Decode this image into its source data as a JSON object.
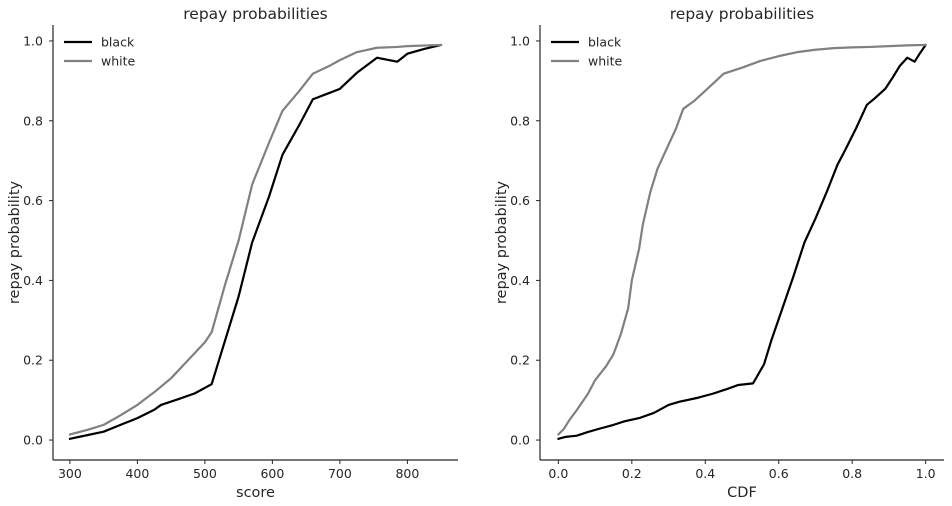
{
  "colors": {
    "black": "#000000",
    "white": "#808080",
    "axis": "#262626"
  },
  "chart_data": [
    {
      "type": "line",
      "title": "repay probabilities",
      "xlabel": "score",
      "ylabel": "repay probability",
      "xlim": [
        275,
        875
      ],
      "ylim": [
        -0.05,
        1.04
      ],
      "xticks": [
        "300",
        "400",
        "500",
        "600",
        "700",
        "800"
      ],
      "yticks": [
        "0.0",
        "0.2",
        "0.4",
        "0.6",
        "0.8",
        "1.0"
      ],
      "legend": "top-left",
      "grid": false,
      "series": [
        {
          "name": "black",
          "color": "#000000",
          "points": [
            [
              300,
              0.003
            ],
            [
              325,
              0.012
            ],
            [
              350,
              0.021
            ],
            [
              375,
              0.038
            ],
            [
              400,
              0.055
            ],
            [
              425,
              0.076
            ],
            [
              435,
              0.088
            ],
            [
              460,
              0.102
            ],
            [
              485,
              0.117
            ],
            [
              510,
              0.14
            ],
            [
              530,
              0.25
            ],
            [
              550,
              0.36
            ],
            [
              570,
              0.495
            ],
            [
              595,
              0.61
            ],
            [
              615,
              0.715
            ],
            [
              640,
              0.79
            ],
            [
              660,
              0.854
            ],
            [
              685,
              0.87
            ],
            [
              700,
              0.88
            ],
            [
              725,
              0.92
            ],
            [
              755,
              0.958
            ],
            [
              785,
              0.948
            ],
            [
              800,
              0.968
            ],
            [
              825,
              0.98
            ],
            [
              850,
              0.99
            ]
          ]
        },
        {
          "name": "white",
          "color": "#808080",
          "points": [
            [
              300,
              0.014
            ],
            [
              325,
              0.025
            ],
            [
              350,
              0.038
            ],
            [
              375,
              0.062
            ],
            [
              400,
              0.088
            ],
            [
              425,
              0.12
            ],
            [
              450,
              0.155
            ],
            [
              475,
              0.2
            ],
            [
              500,
              0.245
            ],
            [
              510,
              0.27
            ],
            [
              530,
              0.39
            ],
            [
              550,
              0.5
            ],
            [
              570,
              0.64
            ],
            [
              595,
              0.745
            ],
            [
              615,
              0.825
            ],
            [
              640,
              0.875
            ],
            [
              660,
              0.918
            ],
            [
              685,
              0.938
            ],
            [
              700,
              0.952
            ],
            [
              725,
              0.972
            ],
            [
              755,
              0.983
            ],
            [
              785,
              0.985
            ],
            [
              800,
              0.987
            ],
            [
              850,
              0.99
            ]
          ]
        }
      ]
    },
    {
      "type": "line",
      "title": "repay probabilities",
      "xlabel": "CDF",
      "ylabel": "repay probability",
      "xlim": [
        -0.05,
        1.05
      ],
      "ylim": [
        -0.05,
        1.04
      ],
      "xticks": [
        "0.0",
        "0.2",
        "0.4",
        "0.6",
        "0.8",
        "1.0"
      ],
      "yticks": [
        "0.0",
        "0.2",
        "0.4",
        "0.6",
        "0.8",
        "1.0"
      ],
      "legend": "top-left",
      "grid": false,
      "series": [
        {
          "name": "black",
          "color": "#000000",
          "points": [
            [
              0.0,
              0.003
            ],
            [
              0.02,
              0.008
            ],
            [
              0.05,
              0.011
            ],
            [
              0.08,
              0.02
            ],
            [
              0.11,
              0.028
            ],
            [
              0.15,
              0.038
            ],
            [
              0.18,
              0.047
            ],
            [
              0.22,
              0.055
            ],
            [
              0.26,
              0.068
            ],
            [
              0.3,
              0.088
            ],
            [
              0.33,
              0.096
            ],
            [
              0.38,
              0.106
            ],
            [
              0.42,
              0.116
            ],
            [
              0.46,
              0.128
            ],
            [
              0.49,
              0.138
            ],
            [
              0.53,
              0.142
            ],
            [
              0.56,
              0.19
            ],
            [
              0.58,
              0.25
            ],
            [
              0.61,
              0.33
            ],
            [
              0.64,
              0.41
            ],
            [
              0.67,
              0.495
            ],
            [
              0.7,
              0.555
            ],
            [
              0.73,
              0.62
            ],
            [
              0.76,
              0.69
            ],
            [
              0.78,
              0.725
            ],
            [
              0.81,
              0.78
            ],
            [
              0.84,
              0.84
            ],
            [
              0.86,
              0.855
            ],
            [
              0.89,
              0.88
            ],
            [
              0.91,
              0.908
            ],
            [
              0.93,
              0.938
            ],
            [
              0.95,
              0.958
            ],
            [
              0.97,
              0.948
            ],
            [
              0.985,
              0.97
            ],
            [
              1.0,
              0.99
            ]
          ]
        },
        {
          "name": "white",
          "color": "#808080",
          "points": [
            [
              0.0,
              0.014
            ],
            [
              0.015,
              0.028
            ],
            [
              0.03,
              0.05
            ],
            [
              0.05,
              0.075
            ],
            [
              0.08,
              0.115
            ],
            [
              0.1,
              0.15
            ],
            [
              0.13,
              0.185
            ],
            [
              0.15,
              0.215
            ],
            [
              0.17,
              0.265
            ],
            [
              0.19,
              0.33
            ],
            [
              0.2,
              0.4
            ],
            [
              0.22,
              0.48
            ],
            [
              0.23,
              0.54
            ],
            [
              0.25,
              0.62
            ],
            [
              0.27,
              0.68
            ],
            [
              0.3,
              0.74
            ],
            [
              0.32,
              0.78
            ],
            [
              0.34,
              0.83
            ],
            [
              0.37,
              0.85
            ],
            [
              0.4,
              0.875
            ],
            [
              0.45,
              0.918
            ],
            [
              0.5,
              0.933
            ],
            [
              0.55,
              0.95
            ],
            [
              0.6,
              0.962
            ],
            [
              0.65,
              0.972
            ],
            [
              0.7,
              0.978
            ],
            [
              0.75,
              0.982
            ],
            [
              0.8,
              0.984
            ],
            [
              0.85,
              0.985
            ],
            [
              0.9,
              0.987
            ],
            [
              0.95,
              0.989
            ],
            [
              1.0,
              0.99
            ]
          ]
        }
      ]
    }
  ]
}
